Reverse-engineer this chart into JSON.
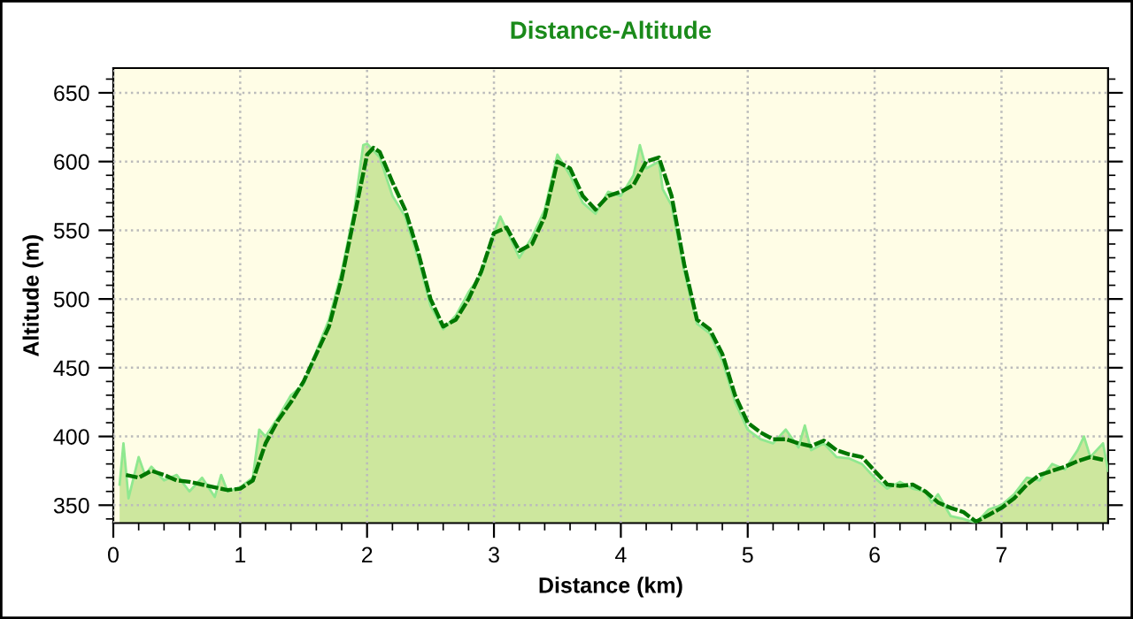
{
  "chart_data": {
    "type": "area",
    "title": "Distance-Altitude",
    "xlabel": "Distance (km)",
    "ylabel": "Altitude (m)",
    "xlim": [
      0,
      7.84
    ],
    "ylim": [
      337,
      668
    ],
    "xticks": [
      0,
      1,
      2,
      3,
      4,
      5,
      6,
      7
    ],
    "yticks": [
      350,
      400,
      450,
      500,
      550,
      600,
      650
    ],
    "grid": true,
    "series": [
      {
        "color": "#8fe88f",
        "line_style": "solid",
        "x": [
          0.05,
          0.08,
          0.12,
          0.2,
          0.25,
          0.3,
          0.4,
          0.5,
          0.6,
          0.7,
          0.8,
          0.85,
          0.9,
          1.0,
          1.1,
          1.15,
          1.2,
          1.3,
          1.4,
          1.5,
          1.6,
          1.7,
          1.8,
          1.9,
          1.97,
          2.0,
          2.05,
          2.1,
          2.2,
          2.3,
          2.4,
          2.5,
          2.6,
          2.7,
          2.8,
          2.9,
          3.0,
          3.05,
          3.1,
          3.2,
          3.3,
          3.4,
          3.5,
          3.6,
          3.7,
          3.8,
          3.9,
          4.0,
          4.1,
          4.15,
          4.2,
          4.3,
          4.33,
          4.4,
          4.5,
          4.6,
          4.7,
          4.8,
          4.9,
          5.0,
          5.1,
          5.2,
          5.3,
          5.4,
          5.45,
          5.5,
          5.6,
          5.7,
          5.8,
          5.9,
          6.0,
          6.1,
          6.2,
          6.3,
          6.4,
          6.45,
          6.5,
          6.6,
          6.7,
          6.8,
          6.9,
          7.0,
          7.1,
          7.2,
          7.3,
          7.4,
          7.5,
          7.6,
          7.65,
          7.7,
          7.8,
          7.84
        ],
        "values": [
          365,
          395,
          355,
          385,
          372,
          378,
          368,
          372,
          360,
          370,
          356,
          372,
          360,
          363,
          370,
          405,
          400,
          414,
          430,
          438,
          462,
          485,
          520,
          565,
          612,
          613,
          608,
          603,
          575,
          560,
          530,
          495,
          478,
          488,
          505,
          518,
          548,
          560,
          550,
          530,
          545,
          565,
          605,
          590,
          570,
          562,
          578,
          575,
          590,
          612,
          595,
          600,
          580,
          568,
          520,
          482,
          475,
          455,
          425,
          405,
          398,
          395,
          405,
          392,
          408,
          390,
          395,
          385,
          384,
          380,
          370,
          362,
          367,
          362,
          360,
          352,
          358,
          342,
          340,
          337,
          347,
          350,
          358,
          370,
          368,
          380,
          376,
          390,
          400,
          385,
          395,
          375
        ]
      },
      {
        "type": "line",
        "color": "#007700",
        "line_style": "dashed",
        "x": [
          0.1,
          0.2,
          0.3,
          0.4,
          0.5,
          0.6,
          0.7,
          0.8,
          0.9,
          1.0,
          1.1,
          1.2,
          1.3,
          1.4,
          1.5,
          1.6,
          1.7,
          1.8,
          1.9,
          2.0,
          2.05,
          2.1,
          2.2,
          2.3,
          2.4,
          2.5,
          2.6,
          2.7,
          2.8,
          2.9,
          3.0,
          3.1,
          3.2,
          3.3,
          3.4,
          3.5,
          3.6,
          3.7,
          3.8,
          3.9,
          4.0,
          4.1,
          4.2,
          4.3,
          4.4,
          4.5,
          4.6,
          4.7,
          4.8,
          4.9,
          5.0,
          5.1,
          5.2,
          5.3,
          5.4,
          5.5,
          5.6,
          5.7,
          5.8,
          5.9,
          6.0,
          6.1,
          6.2,
          6.3,
          6.4,
          6.5,
          6.6,
          6.7,
          6.8,
          6.9,
          7.0,
          7.1,
          7.2,
          7.3,
          7.4,
          7.5,
          7.6,
          7.7,
          7.8
        ],
        "values": [
          372,
          370,
          375,
          372,
          368,
          367,
          365,
          363,
          361,
          362,
          368,
          395,
          412,
          425,
          440,
          460,
          480,
          515,
          560,
          605,
          610,
          607,
          585,
          565,
          535,
          500,
          480,
          485,
          500,
          520,
          548,
          552,
          535,
          540,
          560,
          600,
          595,
          575,
          565,
          575,
          578,
          583,
          600,
          603,
          575,
          525,
          485,
          478,
          460,
          430,
          410,
          403,
          398,
          398,
          395,
          393,
          397,
          390,
          387,
          385,
          375,
          365,
          364,
          365,
          360,
          352,
          348,
          345,
          338,
          343,
          348,
          355,
          365,
          372,
          375,
          378,
          382,
          385,
          383
        ]
      }
    ]
  }
}
